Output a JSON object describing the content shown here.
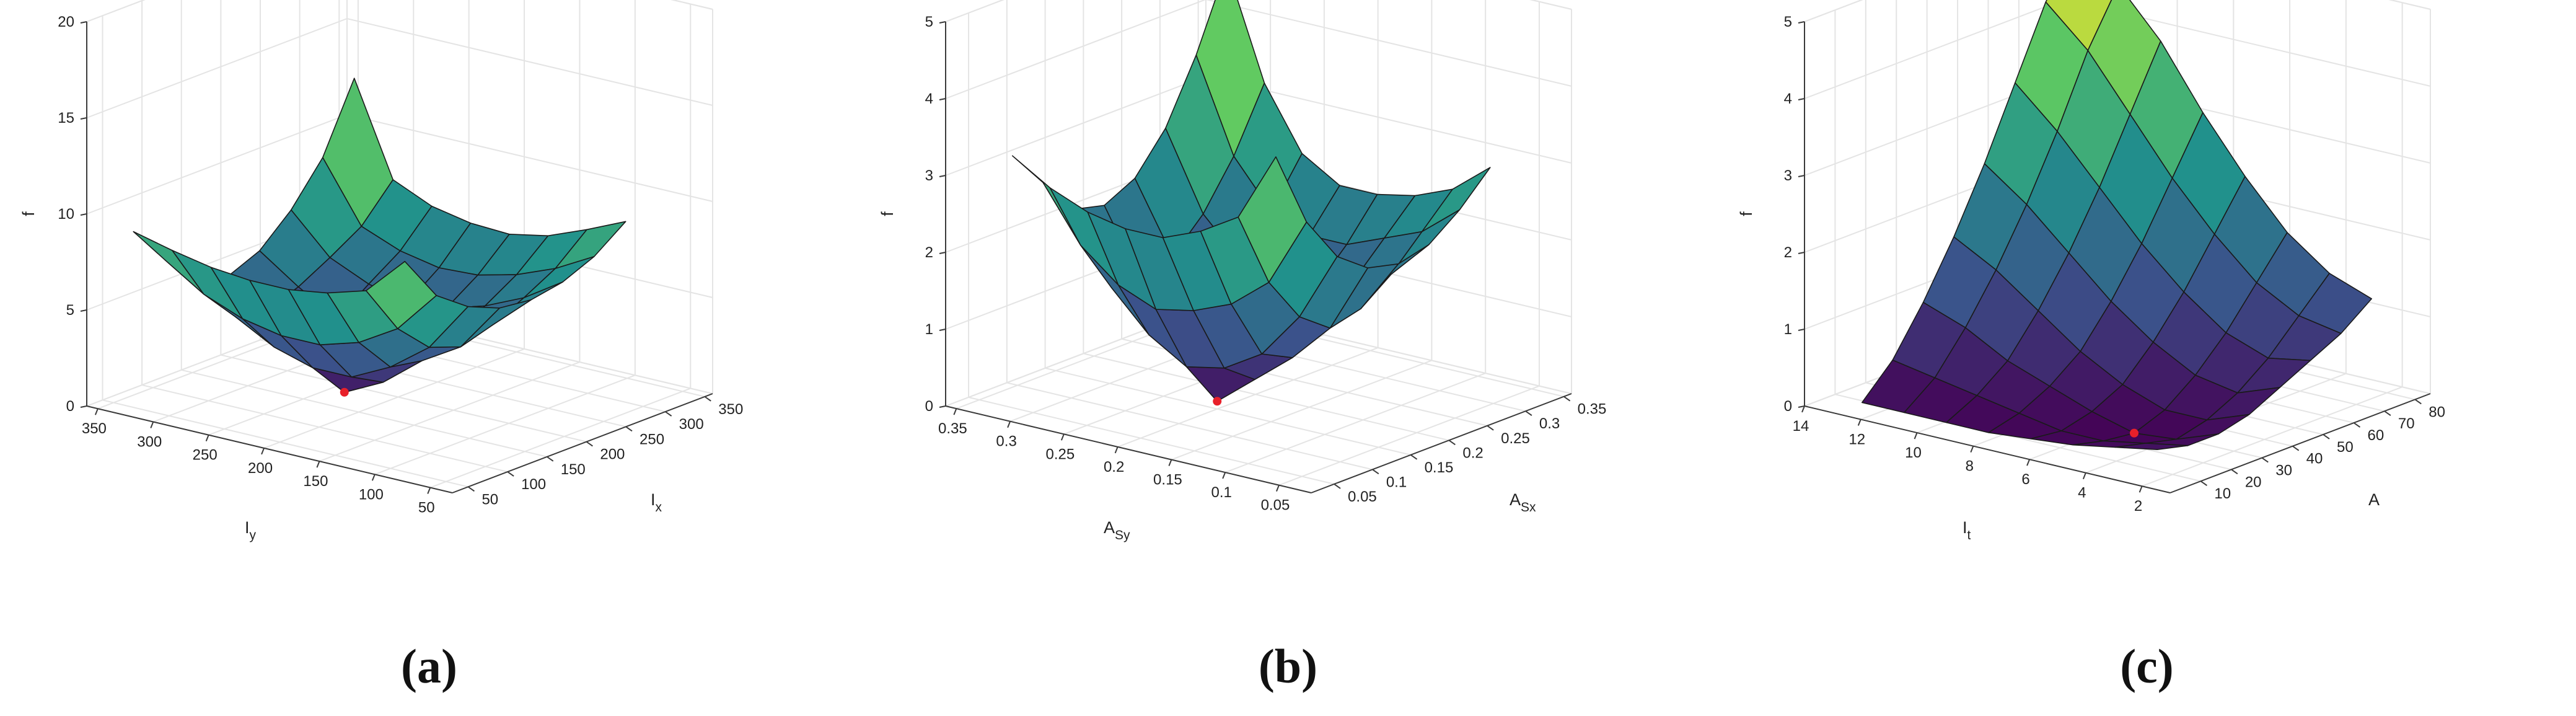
{
  "chart_data": [
    {
      "type": "surface",
      "panel_label": "(a)",
      "xlabel": "I",
      "xlabel_sub": "x",
      "ylabel": "I",
      "ylabel_sub": "y",
      "zlabel": "f",
      "xlim": [
        30,
        360
      ],
      "ylim": [
        30,
        360
      ],
      "zlim": [
        0,
        20
      ],
      "xticks": [
        50,
        100,
        150,
        200,
        250,
        300,
        350
      ],
      "yticks": [
        50,
        100,
        150,
        200,
        250,
        300,
        350
      ],
      "zticks": [
        0,
        5,
        10,
        15,
        20
      ],
      "x_values": [
        40,
        80,
        120,
        160,
        200,
        240,
        280,
        320
      ],
      "y_values": [
        80,
        115,
        150,
        185,
        220,
        255,
        290,
        325
      ],
      "z": [
        [
          11.2,
          8.8,
          7.6,
          6.9,
          6.7,
          7.0,
          7.7,
          8.9
        ],
        [
          9.2,
          6.6,
          5.0,
          4.4,
          4.9,
          5.7,
          6.6,
          8.0
        ],
        [
          8.6,
          5.4,
          3.5,
          3.2,
          3.9,
          4.8,
          5.8,
          7.2
        ],
        [
          8.3,
          4.8,
          2.5,
          1.6,
          2.9,
          4.2,
          5.3,
          6.8
        ],
        [
          8.3,
          4.8,
          2.5,
          0.6,
          2.5,
          4.0,
          5.2,
          6.9
        ],
        [
          8.5,
          5.2,
          3.1,
          2.4,
          3.3,
          4.5,
          5.6,
          7.3
        ],
        [
          8.9,
          6.0,
          4.2,
          3.9,
          4.5,
          5.4,
          6.4,
          8.2
        ],
        [
          9.4,
          7.3,
          5.8,
          5.2,
          5.9,
          7.4,
          9.5,
          13.0
        ]
      ],
      "minimum": {
        "x": 160,
        "y": 220,
        "z": 0.6,
        "color": "#e8202a"
      }
    },
    {
      "type": "surface",
      "panel_label": "(b)",
      "xlabel": "A",
      "xlabel_sub": "Sx",
      "ylabel": "A",
      "ylabel_sub": "Sy",
      "zlabel": "f",
      "xlim": [
        0.02,
        0.36
      ],
      "ylim": [
        0.02,
        0.36
      ],
      "zlim": [
        0,
        5
      ],
      "xticks": [
        0.05,
        0.1,
        0.15,
        0.2,
        0.25,
        0.3,
        0.35
      ],
      "yticks": [
        0.05,
        0.1,
        0.15,
        0.2,
        0.25,
        0.3,
        0.35
      ],
      "zticks": [
        0,
        1,
        2,
        3,
        4,
        5
      ],
      "x_values": [
        0.03,
        0.07,
        0.11,
        0.15,
        0.19,
        0.23,
        0.27,
        0.31
      ],
      "y_values": [
        0.06,
        0.095,
        0.13,
        0.165,
        0.2,
        0.235,
        0.27,
        0.305
      ],
      "z": [
        [
          4.2,
          3.2,
          2.6,
          2.3,
          2.2,
          2.3,
          2.6,
          3.0
        ],
        [
          3.3,
          2.3,
          1.7,
          1.4,
          1.5,
          1.8,
          2.2,
          2.6
        ],
        [
          3.0,
          1.9,
          1.1,
          0.9,
          1.2,
          1.6,
          2.0,
          2.4
        ],
        [
          2.8,
          1.7,
          0.8,
          0.5,
          0.9,
          1.4,
          1.8,
          2.3
        ],
        [
          2.8,
          1.6,
          0.7,
          0.1,
          0.7,
          1.3,
          1.8,
          2.3
        ],
        [
          2.9,
          1.8,
          1.0,
          0.8,
          1.1,
          1.5,
          2.0,
          2.6
        ],
        [
          3.1,
          2.2,
          1.5,
          1.4,
          1.6,
          2.0,
          2.6,
          3.4
        ],
        [
          3.4,
          2.9,
          2.4,
          2.3,
          2.5,
          3.0,
          3.8,
          4.8
        ]
      ],
      "minimum": {
        "x": 0.15,
        "y": 0.2,
        "z": 0.1,
        "color": "#e8202a"
      }
    },
    {
      "type": "surface",
      "panel_label": "(c)",
      "xlabel": "A",
      "xlabel_sub": "",
      "ylabel": "I",
      "ylabel_sub": "t",
      "zlabel": "f",
      "xlim": [
        0,
        85
      ],
      "ylim": [
        1,
        14
      ],
      "zlim": [
        0,
        5
      ],
      "xticks": [
        10,
        20,
        30,
        40,
        50,
        60,
        70,
        80
      ],
      "yticks": [
        2,
        4,
        6,
        8,
        10,
        12,
        14
      ],
      "zticks": [
        0,
        1,
        2,
        3,
        4,
        5
      ],
      "x_values": [
        5,
        15,
        25,
        35,
        45,
        55,
        65,
        75
      ],
      "y_values": [
        2,
        3.5,
        5,
        6.5,
        8,
        9.5,
        11,
        12.5
      ],
      "z": [
        [
          0.4,
          0.3,
          0.3,
          0.4,
          0.6,
          0.8,
          1.0,
          1.3
        ],
        [
          0.3,
          0.2,
          0.1,
          0.2,
          0.4,
          0.7,
          1.1,
          1.5
        ],
        [
          0.2,
          0.1,
          0.05,
          0.2,
          0.5,
          0.9,
          1.4,
          1.9
        ],
        [
          0.15,
          0.1,
          0.2,
          0.4,
          0.8,
          1.3,
          1.9,
          2.5
        ],
        [
          0.1,
          0.2,
          0.4,
          0.7,
          1.2,
          1.8,
          2.5,
          3.2
        ],
        [
          0.1,
          0.3,
          0.6,
          1.1,
          1.7,
          2.4,
          3.2,
          4.0
        ],
        [
          0.1,
          0.4,
          0.9,
          1.5,
          2.2,
          3.0,
          3.9,
          4.6
        ],
        [
          0.1,
          0.5,
          1.1,
          1.8,
          2.6,
          3.5,
          4.4,
          5.0
        ]
      ],
      "minimum": {
        "x": 25,
        "y": 5,
        "z": 0.05,
        "color": "#e8202a"
      }
    }
  ],
  "colormap": [
    "#440154",
    "#3b528b",
    "#21918c",
    "#5ec962",
    "#fde725"
  ]
}
